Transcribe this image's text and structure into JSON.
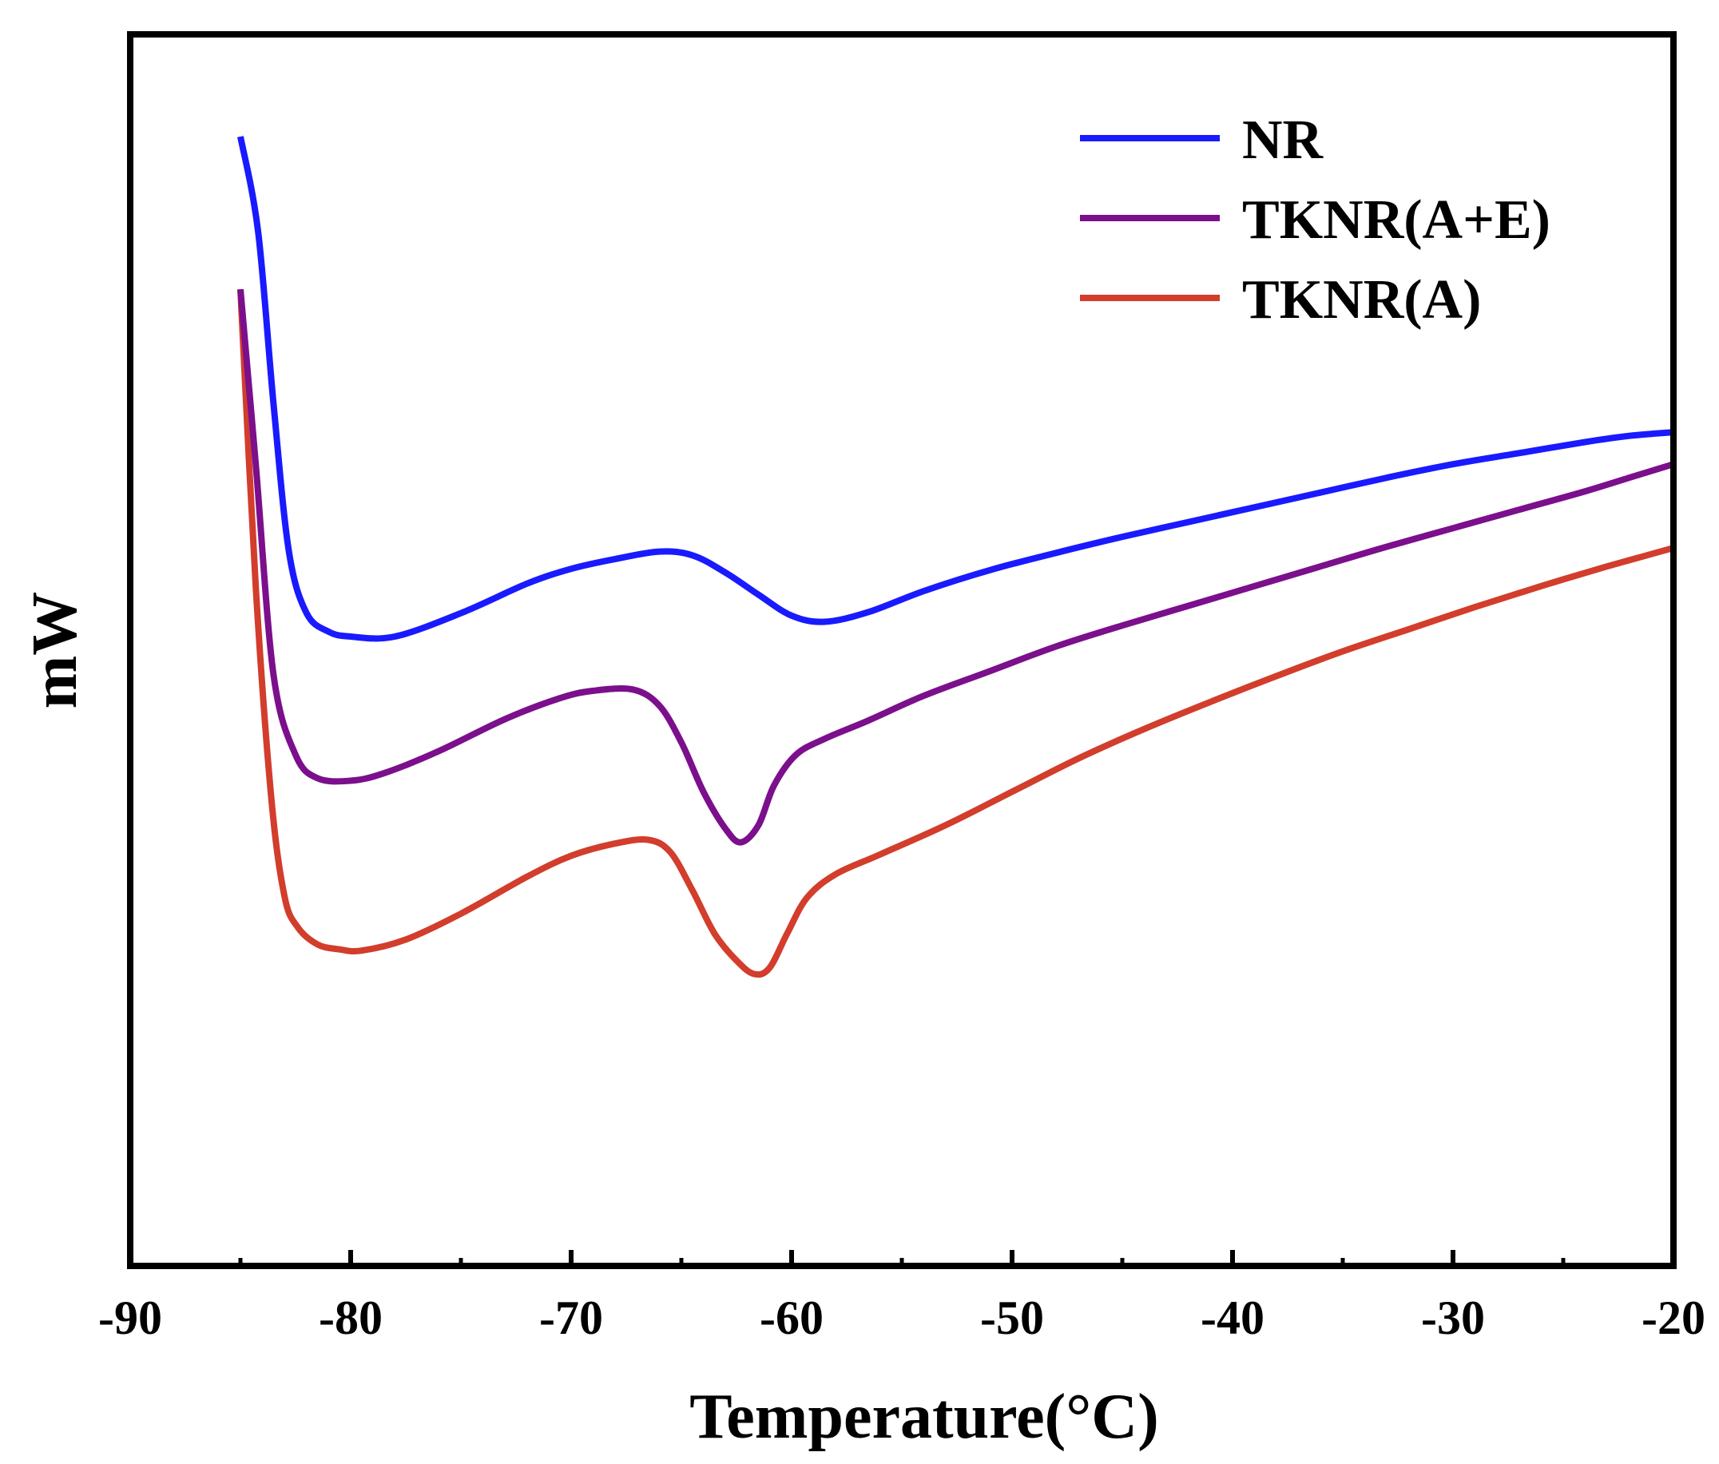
{
  "chart_data": {
    "type": "line",
    "title": "",
    "xlabel": "Temperature(°C)",
    "ylabel": "mW",
    "xlim": [
      -90,
      -20
    ],
    "ylim": [
      0,
      100
    ],
    "x_ticks": [
      -90,
      -80,
      -70,
      -60,
      -50,
      -40,
      -30,
      -20
    ],
    "x_tick_labels": [
      "-90",
      "-80",
      "-70",
      "-60",
      "-50",
      "-40",
      "-30",
      "-20"
    ],
    "y_ticks_shown": false,
    "grid": false,
    "legend_position": "top-right",
    "series": [
      {
        "name": "NR",
        "color": "#1a1aff",
        "points": [
          [
            -85,
            91.7
          ],
          [
            -84.2,
            84
          ],
          [
            -83.5,
            70
          ],
          [
            -82.8,
            58
          ],
          [
            -82,
            53
          ],
          [
            -81,
            51.5
          ],
          [
            -80,
            51.1
          ],
          [
            -78,
            51.1
          ],
          [
            -75,
            53
          ],
          [
            -72,
            55.4
          ],
          [
            -70,
            56.6
          ],
          [
            -68,
            57.4
          ],
          [
            -66,
            58.0
          ],
          [
            -64.5,
            57.7
          ],
          [
            -63,
            56.3
          ],
          [
            -61.5,
            54.5
          ],
          [
            -60,
            52.8
          ],
          [
            -58.5,
            52.3
          ],
          [
            -56.5,
            53.1
          ],
          [
            -54,
            54.8
          ],
          [
            -51,
            56.5
          ],
          [
            -48,
            57.9
          ],
          [
            -45,
            59.2
          ],
          [
            -42,
            60.4
          ],
          [
            -39,
            61.6
          ],
          [
            -36,
            62.8
          ],
          [
            -33,
            64.0
          ],
          [
            -30,
            65.1
          ],
          [
            -27,
            66.0
          ],
          [
            -24,
            66.9
          ],
          [
            -22,
            67.4
          ],
          [
            -20,
            67.7
          ]
        ]
      },
      {
        "name": "TKNR(A+E)",
        "color": "#7b0f8c",
        "points": [
          [
            -85,
            79.3
          ],
          [
            -84.3,
            65
          ],
          [
            -83.5,
            48
          ],
          [
            -82.5,
            41.5
          ],
          [
            -81.5,
            39.6
          ],
          [
            -80,
            39.4
          ],
          [
            -78.5,
            40.0
          ],
          [
            -76,
            41.8
          ],
          [
            -73,
            44.4
          ],
          [
            -70.5,
            46.1
          ],
          [
            -69,
            46.7
          ],
          [
            -67.2,
            46.8
          ],
          [
            -66,
            45.5
          ],
          [
            -65,
            42.5
          ],
          [
            -64,
            38.5
          ],
          [
            -63,
            35.5
          ],
          [
            -62.3,
            34.4
          ],
          [
            -61.5,
            35.8
          ],
          [
            -60.8,
            39.0
          ],
          [
            -59.8,
            41.5
          ],
          [
            -58.5,
            42.8
          ],
          [
            -56.5,
            44.3
          ],
          [
            -54,
            46.3
          ],
          [
            -51,
            48.3
          ],
          [
            -48,
            50.3
          ],
          [
            -45,
            52.0
          ],
          [
            -42,
            53.6
          ],
          [
            -39,
            55.2
          ],
          [
            -36,
            56.8
          ],
          [
            -33,
            58.4
          ],
          [
            -30,
            59.9
          ],
          [
            -27,
            61.4
          ],
          [
            -24,
            62.9
          ],
          [
            -22,
            64.0
          ],
          [
            -20,
            65.1
          ]
        ]
      },
      {
        "name": "TKNR(A)",
        "color": "#d23d2c",
        "points": [
          [
            -85,
            79.3
          ],
          [
            -84.3,
            55
          ],
          [
            -83.6,
            38
          ],
          [
            -83,
            30
          ],
          [
            -82.4,
            27.5
          ],
          [
            -81.5,
            26.1
          ],
          [
            -80.5,
            25.7
          ],
          [
            -79.5,
            25.6
          ],
          [
            -77.5,
            26.5
          ],
          [
            -75,
            28.6
          ],
          [
            -72,
            31.6
          ],
          [
            -70,
            33.3
          ],
          [
            -68,
            34.3
          ],
          [
            -66.5,
            34.6
          ],
          [
            -65.5,
            33.6
          ],
          [
            -64.5,
            30.5
          ],
          [
            -63.5,
            27.0
          ],
          [
            -62.5,
            24.8
          ],
          [
            -61.7,
            23.7
          ],
          [
            -61,
            24.2
          ],
          [
            -60.2,
            27.0
          ],
          [
            -59.3,
            29.9
          ],
          [
            -58,
            31.8
          ],
          [
            -56,
            33.4
          ],
          [
            -53,
            35.8
          ],
          [
            -50,
            38.5
          ],
          [
            -47,
            41.2
          ],
          [
            -44,
            43.6
          ],
          [
            -41,
            45.8
          ],
          [
            -38,
            47.9
          ],
          [
            -35,
            49.9
          ],
          [
            -32,
            51.7
          ],
          [
            -29,
            53.5
          ],
          [
            -26,
            55.2
          ],
          [
            -23,
            56.8
          ],
          [
            -21,
            57.8
          ],
          [
            -20,
            58.3
          ]
        ]
      }
    ]
  }
}
